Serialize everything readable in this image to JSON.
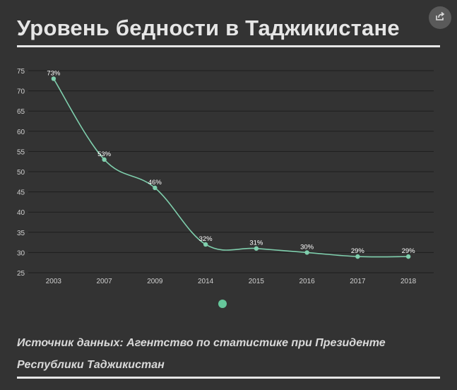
{
  "header": {
    "title": "Уровень бедности в Таджикистане"
  },
  "share": {
    "icon": "share-icon"
  },
  "chart_data": {
    "type": "line",
    "title": "Уровень бедности в Таджикистане",
    "categories": [
      "2003",
      "2007",
      "2009",
      "2014",
      "2015",
      "2016",
      "2017",
      "2018"
    ],
    "series": [
      {
        "values": [
          73,
          53,
          46,
          32,
          31,
          30,
          29,
          29
        ],
        "labels": [
          "73%",
          "53%",
          "46%",
          "32%",
          "31%",
          "30%",
          "29%",
          "29%"
        ]
      }
    ],
    "yticks": [
      "25",
      "30",
      "35",
      "40",
      "45",
      "50",
      "55",
      "60",
      "65",
      "70",
      "75"
    ],
    "ylim": [
      25,
      75
    ],
    "grid": true,
    "legend": "none",
    "colors": {
      "line": "#7fcfad",
      "grid": "#1e1e1e",
      "axis_text": "#d0d0d0"
    }
  },
  "pager": {
    "active_page": 1
  },
  "footer": {
    "source": "Источник данных: Агентство по статистике при Президенте Республики Таджикистан"
  }
}
